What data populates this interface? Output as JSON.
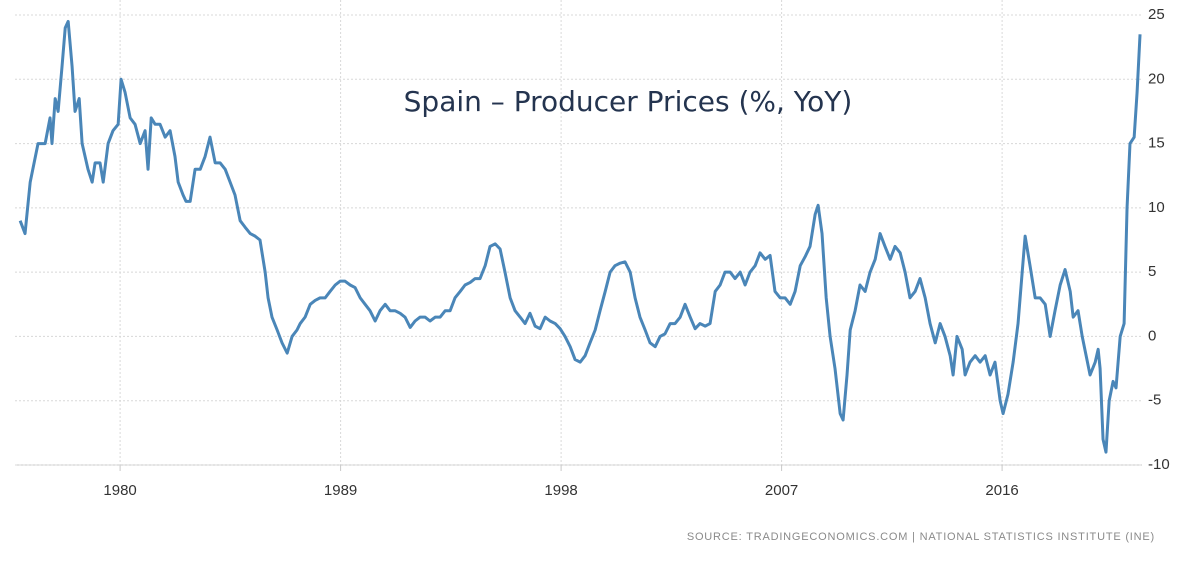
{
  "chart_data": {
    "type": "line",
    "title": "Spain – Producer Prices (%, YoY)",
    "source": "SOURCE: TRADINGECONOMICS.COM | NATIONAL STATISTICS INSTITUTE (INE)",
    "color": "#4a86b8",
    "grid": true,
    "xlim": [
      1975.71,
      2021.71
    ],
    "xticks": [
      1980,
      1989,
      1998,
      2007,
      2016
    ],
    "ylim": [
      -10,
      25
    ],
    "yticks": [
      -10,
      -5,
      0,
      5,
      10,
      15,
      20,
      25
    ],
    "x": [
      1975.92,
      1976.12,
      1976.33,
      1976.65,
      1976.94,
      1977.14,
      1977.22,
      1977.35,
      1977.47,
      1977.63,
      1977.76,
      1977.88,
      1978.04,
      1978.16,
      1978.33,
      1978.45,
      1978.69,
      1978.86,
      1978.98,
      1979.18,
      1979.31,
      1979.51,
      1979.71,
      1979.92,
      1980.04,
      1980.2,
      1980.41,
      1980.61,
      1980.82,
      1981.02,
      1981.14,
      1981.27,
      1981.43,
      1981.63,
      1981.84,
      1982.04,
      1982.24,
      1982.37,
      1982.57,
      1982.69,
      1982.86,
      1983.06,
      1983.27,
      1983.47,
      1983.67,
      1983.88,
      1984.08,
      1984.29,
      1984.49,
      1984.69,
      1984.9,
      1985.1,
      1985.31,
      1985.51,
      1985.71,
      1985.92,
      1986.04,
      1986.2,
      1986.41,
      1986.61,
      1986.82,
      1987.02,
      1987.22,
      1987.35,
      1987.55,
      1987.76,
      1987.96,
      1988.16,
      1988.37,
      1988.57,
      1988.78,
      1988.98,
      1989.18,
      1989.39,
      1989.59,
      1989.8,
      1990,
      1990.2,
      1990.41,
      1990.61,
      1990.82,
      1991.02,
      1991.22,
      1991.43,
      1991.63,
      1991.84,
      1992.04,
      1992.24,
      1992.45,
      1992.65,
      1992.86,
      1993.06,
      1993.27,
      1993.47,
      1993.67,
      1993.88,
      1994.08,
      1994.29,
      1994.49,
      1994.69,
      1994.9,
      1995.1,
      1995.31,
      1995.51,
      1995.71,
      1995.92,
      1996.12,
      1996.33,
      1996.53,
      1996.73,
      1996.94,
      1997.14,
      1997.35,
      1997.55,
      1997.76,
      1997.96,
      1998.16,
      1998.37,
      1998.57,
      1998.78,
      1998.98,
      1999.18,
      1999.39,
      1999.59,
      1999.8,
      2000,
      2000.2,
      2000.41,
      2000.61,
      2000.82,
      2001.02,
      2001.22,
      2001.43,
      2001.63,
      2001.84,
      2002.04,
      2002.24,
      2002.45,
      2002.65,
      2002.86,
      2003.06,
      2003.27,
      2003.47,
      2003.67,
      2003.88,
      2004.08,
      2004.29,
      2004.49,
      2004.69,
      2004.9,
      2005.1,
      2005.31,
      2005.51,
      2005.71,
      2005.92,
      2006.12,
      2006.33,
      2006.53,
      2006.73,
      2006.94,
      2007.14,
      2007.35,
      2007.55,
      2007.76,
      2007.96,
      2008.16,
      2008.37,
      2008.49,
      2008.65,
      2008.82,
      2008.98,
      2009.18,
      2009.39,
      2009.51,
      2009.67,
      2009.8,
      2010,
      2010.2,
      2010.41,
      2010.61,
      2010.82,
      2011.02,
      2011.22,
      2011.43,
      2011.63,
      2011.84,
      2012.04,
      2012.24,
      2012.45,
      2012.65,
      2012.86,
      2013.06,
      2013.27,
      2013.47,
      2013.67,
      2013.88,
      2014,
      2014.16,
      2014.37,
      2014.49,
      2014.69,
      2014.9,
      2015.1,
      2015.31,
      2015.51,
      2015.71,
      2015.92,
      2016.04,
      2016.24,
      2016.45,
      2016.65,
      2016.82,
      2016.94,
      2017.14,
      2017.35,
      2017.55,
      2017.76,
      2017.96,
      2018.16,
      2018.37,
      2018.57,
      2018.78,
      2018.9,
      2019.1,
      2019.27,
      2019.43,
      2019.59,
      2019.8,
      2019.92,
      2020,
      2020.12,
      2020.24,
      2020.37,
      2020.53,
      2020.65,
      2020.82,
      2020.98,
      2021.1,
      2021.22,
      2021.39,
      2021.51,
      2021.63
    ],
    "values": [
      9,
      8,
      12,
      15,
      15,
      17,
      15,
      18.5,
      17.5,
      21,
      24,
      24.5,
      21,
      17.5,
      18.5,
      15,
      13,
      12,
      13.5,
      13.5,
      12,
      15,
      16,
      16.5,
      20,
      19,
      17,
      16.5,
      15,
      16,
      13,
      17,
      16.5,
      16.5,
      15.5,
      16,
      14,
      12,
      11,
      10.5,
      10.5,
      13,
      13,
      14,
      15.5,
      13.5,
      13.5,
      13,
      12,
      11,
      9,
      8.5,
      8,
      7.8,
      7.5,
      5,
      3,
      1.5,
      0.5,
      -0.5,
      -1.3,
      0,
      0.5,
      1,
      1.5,
      2.5,
      2.8,
      3,
      3,
      3.5,
      4,
      4.3,
      4.3,
      4,
      3.8,
      3,
      2.5,
      2,
      1.2,
      2,
      2.5,
      2,
      2,
      1.8,
      1.5,
      0.7,
      1.2,
      1.5,
      1.5,
      1.2,
      1.5,
      1.5,
      2,
      2,
      3,
      3.5,
      4,
      4.2,
      4.5,
      4.5,
      5.5,
      7,
      7.2,
      6.8,
      5,
      3,
      2,
      1.5,
      1,
      1.8,
      0.8,
      0.6,
      1.5,
      1.2,
      1,
      0.6,
      0,
      -0.8,
      -1.8,
      -2,
      -1.5,
      -0.5,
      0.5,
      2,
      3.5,
      5,
      5.5,
      5.7,
      5.8,
      5,
      3,
      1.5,
      0.5,
      -0.5,
      -0.8,
      0,
      0.2,
      1,
      1,
      1.5,
      2.5,
      1.5,
      0.6,
      1,
      0.8,
      1,
      3.5,
      4,
      5,
      5,
      4.5,
      5,
      4,
      5,
      5.5,
      6.5,
      6,
      6.3,
      3.5,
      3,
      3,
      2.5,
      3.5,
      5.5,
      6.2,
      7,
      9.5,
      10.2,
      8,
      3,
      0,
      -2.5,
      -6,
      -6.5,
      -3,
      0.5,
      2,
      4,
      3.5,
      5,
      6,
      8,
      7,
      6,
      7,
      6.5,
      5,
      3,
      3.5,
      4.5,
      3,
      1,
      -0.5,
      1,
      0,
      -1.5,
      -3,
      0,
      -1,
      -3,
      -2,
      -1.5,
      -2,
      -1.5,
      -3,
      -2,
      -5,
      -6,
      -4.5,
      -2,
      1,
      5,
      7.8,
      5.5,
      3,
      3,
      2.5,
      0,
      2,
      4,
      5.2,
      3.5,
      1.5,
      2,
      0,
      -1.5,
      -3,
      -2,
      -1,
      -2.5,
      -8,
      -9,
      -5,
      -3.5,
      -4,
      0,
      1,
      10,
      15,
      15.5,
      19,
      23.5
    ]
  }
}
